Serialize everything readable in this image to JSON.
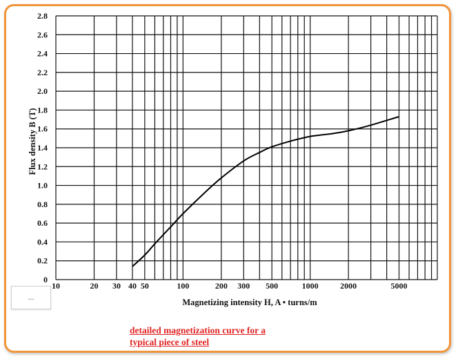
{
  "accent_color": "#f0953a",
  "more_button": {
    "label": "..."
  },
  "caption": {
    "line1": "detailed magnetization curve for a",
    "line2": "typical piece of steel",
    "color": "#e02424"
  },
  "chart_data": {
    "type": "line",
    "title": "",
    "xlabel": "Magnetizing intensity H,  A • turns/m",
    "ylabel": "Flux density B (T)",
    "x_scale": "log",
    "xlim": [
      10,
      10000
    ],
    "ylim": [
      0,
      2.8
    ],
    "x_tick_labels": [
      {
        "value": 10,
        "label": "10"
      },
      {
        "value": 20,
        "label": "20"
      },
      {
        "value": 30,
        "label": "30"
      },
      {
        "value": 40,
        "label": "40"
      },
      {
        "value": 50,
        "label": "50"
      },
      {
        "value": 100,
        "label": "100"
      },
      {
        "value": 200,
        "label": "200"
      },
      {
        "value": 300,
        "label": "300"
      },
      {
        "value": 500,
        "label": "500"
      },
      {
        "value": 1000,
        "label": "1000"
      },
      {
        "value": 2000,
        "label": "2000"
      },
      {
        "value": 5000,
        "label": "5000"
      }
    ],
    "y_ticks": [
      0,
      0.2,
      0.4,
      0.6,
      0.8,
      1.0,
      1.2,
      1.4,
      1.6,
      1.8,
      2.0,
      2.2,
      2.4,
      2.6,
      2.8
    ],
    "y_tick_labels": [
      "0",
      "0.2",
      "0.4",
      "0.6",
      "0.8",
      "1.0",
      "1.2",
      "1.4",
      "1.6",
      "1.8",
      "2.0",
      "2.2",
      "2.4",
      "2.6",
      "2.8"
    ],
    "grid": true,
    "series": [
      {
        "x": [
          40,
          50,
          60,
          80,
          100,
          150,
          200,
          300,
          400,
          500,
          700,
          1000,
          1500,
          2000,
          3000,
          5000
        ],
        "y": [
          0.14,
          0.26,
          0.38,
          0.56,
          0.7,
          0.93,
          1.08,
          1.26,
          1.35,
          1.41,
          1.47,
          1.52,
          1.55,
          1.58,
          1.64,
          1.73
        ]
      }
    ]
  }
}
